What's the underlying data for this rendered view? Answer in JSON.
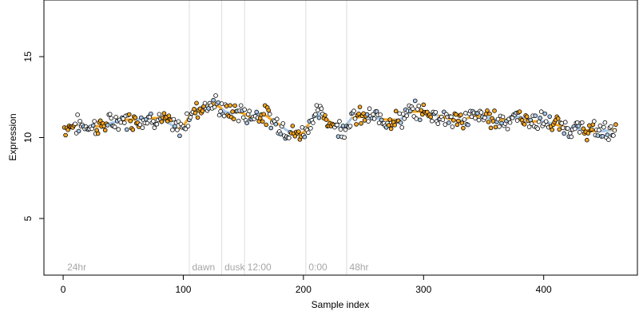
{
  "chart_data": {
    "type": "scatter",
    "title": "",
    "xlabel": "Sample index",
    "ylabel": "Expression",
    "xlim": [
      -16,
      478
    ],
    "ylim": [
      1.5,
      18.5
    ],
    "x_ticks": [
      0,
      100,
      200,
      300,
      400
    ],
    "y_ticks": [
      5,
      10,
      15
    ],
    "grid": false,
    "legend": "none",
    "colors": {
      "point_stroke": "#000000",
      "point_fill_a": "#f5a623",
      "point_fill_b": "#a7c7e7",
      "vline": "#dcdcdc",
      "annotation": "#a6a6a6",
      "line_a": "#f5a623",
      "line_b": "#a7c7e7"
    },
    "annotations": [
      {
        "x": 2,
        "label": "24hr"
      },
      {
        "x": 106,
        "label": "dawn"
      },
      {
        "x": 133,
        "label": "dusk"
      },
      {
        "x": 152,
        "label": "12:00"
      },
      {
        "x": 203,
        "label": "0:00"
      },
      {
        "x": 237,
        "label": "48hr"
      }
    ],
    "vlines": [
      105,
      132,
      151,
      202,
      236
    ],
    "series_control_points": [
      [
        1,
        10.6
      ],
      [
        10,
        10.8
      ],
      [
        20,
        10.7
      ],
      [
        30,
        10.7
      ],
      [
        40,
        10.9
      ],
      [
        50,
        11.1
      ],
      [
        60,
        11.1
      ],
      [
        70,
        11.2
      ],
      [
        80,
        11.2
      ],
      [
        90,
        10.8
      ],
      [
        95,
        10.5
      ],
      [
        100,
        10.7
      ],
      [
        105,
        11.3
      ],
      [
        110,
        11.7
      ],
      [
        115,
        11.9
      ],
      [
        120,
        12.0
      ],
      [
        125,
        12.1
      ],
      [
        130,
        11.9
      ],
      [
        135,
        11.6
      ],
      [
        140,
        11.5
      ],
      [
        145,
        11.6
      ],
      [
        150,
        11.5
      ],
      [
        155,
        11.3
      ],
      [
        160,
        11.4
      ],
      [
        165,
        11.5
      ],
      [
        170,
        11.3
      ],
      [
        175,
        11.0
      ],
      [
        180,
        10.8
      ],
      [
        185,
        10.5
      ],
      [
        190,
        10.3
      ],
      [
        195,
        10.2
      ],
      [
        200,
        10.3
      ],
      [
        205,
        10.9
      ],
      [
        210,
        11.4
      ],
      [
        215,
        11.5
      ],
      [
        220,
        11.1
      ],
      [
        225,
        10.8
      ],
      [
        230,
        10.6
      ],
      [
        235,
        10.7
      ],
      [
        240,
        11.2
      ],
      [
        250,
        11.3
      ],
      [
        260,
        11.2
      ],
      [
        270,
        11.1
      ],
      [
        280,
        11.1
      ],
      [
        290,
        11.6
      ],
      [
        300,
        11.6
      ],
      [
        310,
        11.4
      ],
      [
        320,
        11.2
      ],
      [
        330,
        11.0
      ],
      [
        340,
        11.3
      ],
      [
        350,
        11.3
      ],
      [
        360,
        11.1
      ],
      [
        370,
        11.1
      ],
      [
        380,
        11.3
      ],
      [
        390,
        11.0
      ],
      [
        400,
        11.0
      ],
      [
        410,
        10.8
      ],
      [
        420,
        10.6
      ],
      [
        430,
        10.5
      ],
      [
        440,
        10.4
      ],
      [
        450,
        10.4
      ],
      [
        460,
        10.5
      ]
    ],
    "n_points": 460
  }
}
